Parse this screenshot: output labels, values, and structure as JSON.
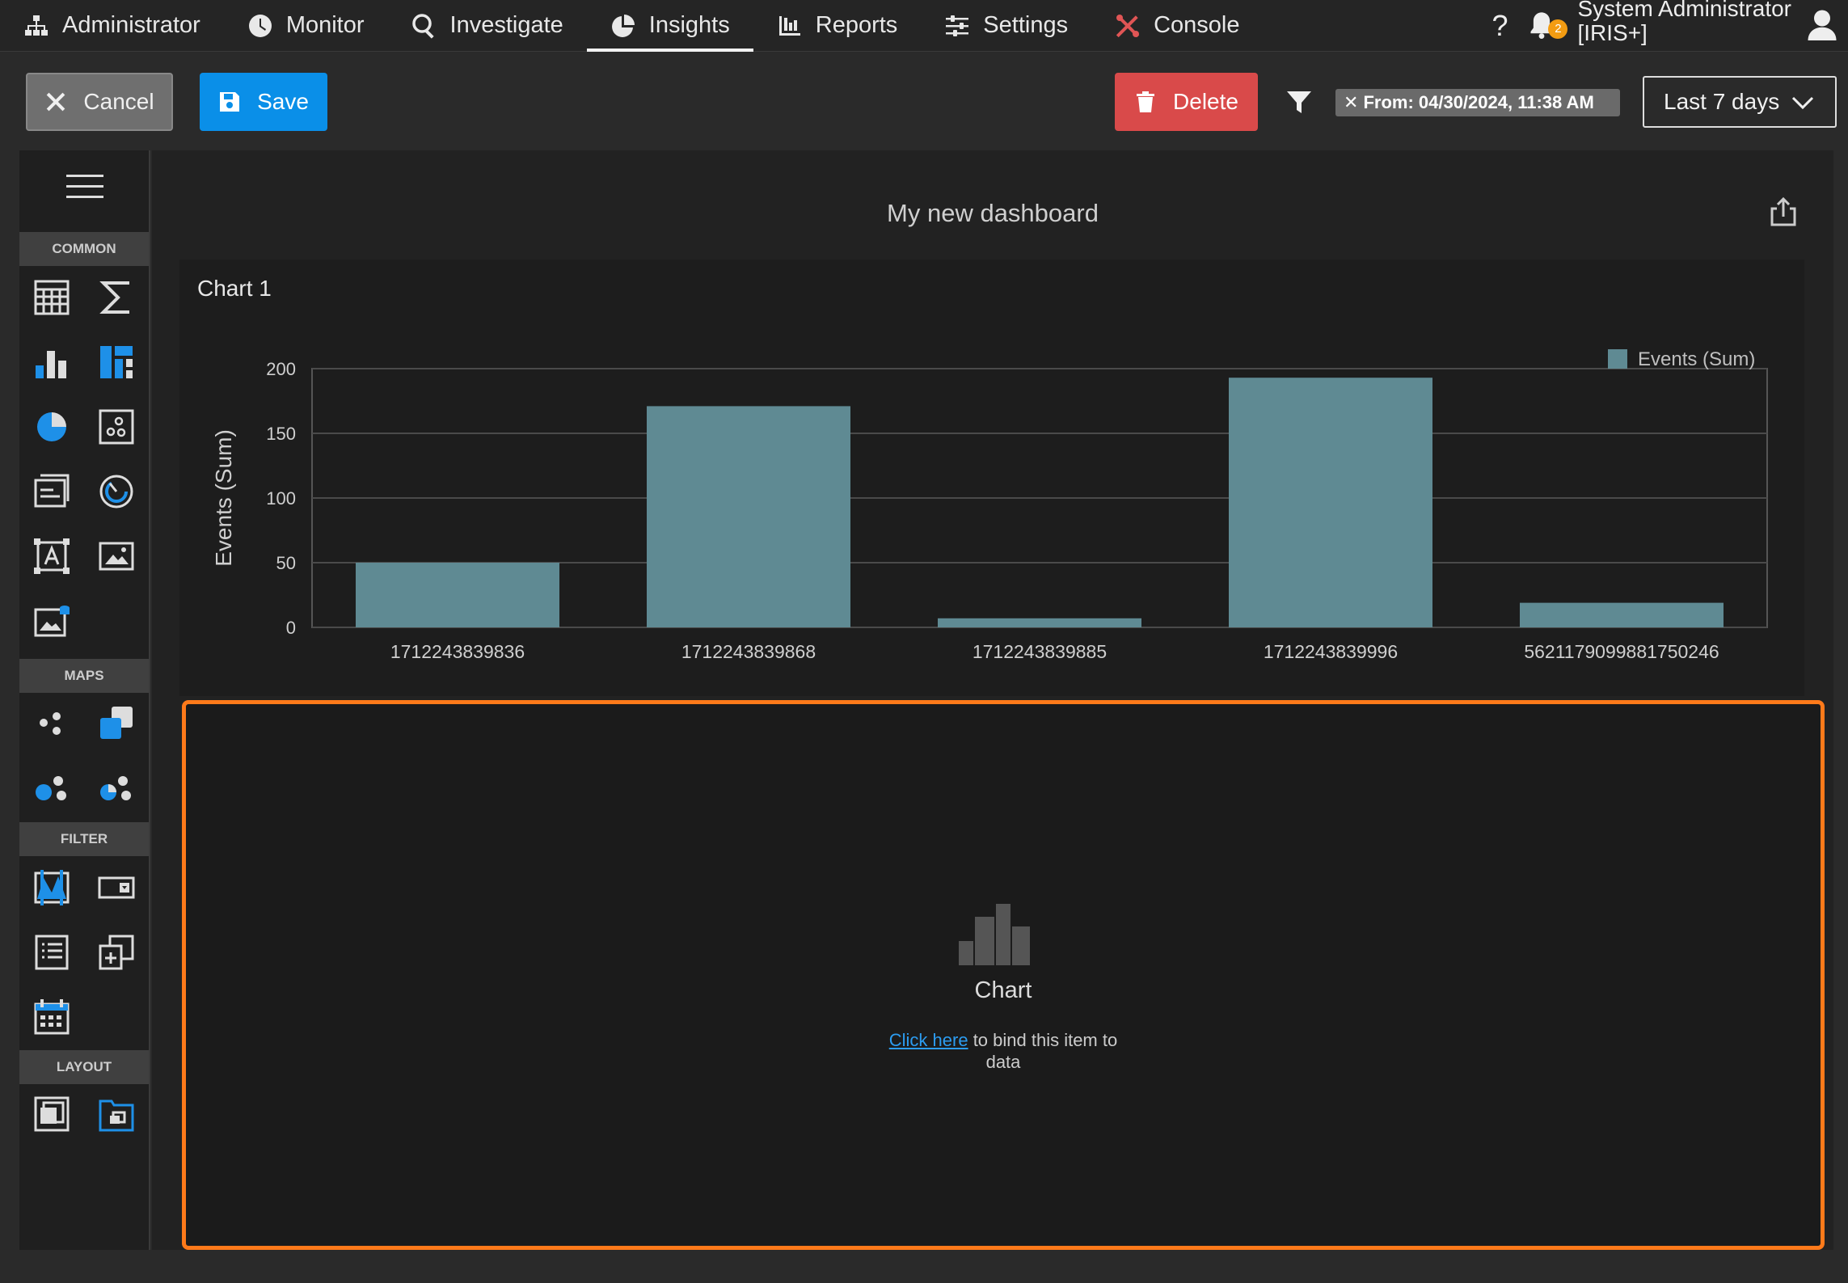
{
  "nav": {
    "items": [
      {
        "label": "Administrator",
        "icon": "sitemap-icon"
      },
      {
        "label": "Monitor",
        "icon": "clock-icon"
      },
      {
        "label": "Investigate",
        "icon": "search-icon"
      },
      {
        "label": "Insights",
        "icon": "pie-chart-icon"
      },
      {
        "label": "Reports",
        "icon": "bar-chart-icon"
      },
      {
        "label": "Settings",
        "icon": "sliders-icon"
      },
      {
        "label": "Console",
        "icon": "tools-icon"
      }
    ],
    "active": "Insights",
    "help": "?",
    "notifications_count": "2",
    "user_line1": "System Administrator",
    "user_line2": "[IRIS+]"
  },
  "toolbar": {
    "cancel_label": "Cancel",
    "save_label": "Save",
    "delete_label": "Delete",
    "from_chip": "From: 04/30/2024, 11:38 AM",
    "range_value": "Last 7 days"
  },
  "sidebar": {
    "sections": {
      "common": "COMMON",
      "maps": "MAPS",
      "filter": "FILTER",
      "layout": "LAYOUT"
    }
  },
  "dashboard": {
    "title": "My new dashboard",
    "chart_card_title": "Chart 1",
    "empty": {
      "title": "Chart",
      "link": "Click here",
      "text": "to bind this item to data"
    }
  },
  "colors": {
    "bar": "#5f8a93",
    "accent": "#0a8fe8",
    "danger": "#d94a4a",
    "highlight": "#ff7a1a"
  },
  "chart_data": {
    "type": "bar",
    "categories": [
      "1712243839836",
      "1712243839868",
      "1712243839885",
      "1712243839996",
      "5621179099881750246"
    ],
    "series": [
      {
        "name": "Events (Sum)",
        "values": [
          50,
          171,
          7,
          193,
          19
        ]
      }
    ],
    "ylabel": "Events (Sum)",
    "xlabel": "",
    "ylim": [
      0,
      200
    ],
    "yticks": [
      0,
      50,
      100,
      150,
      200
    ],
    "grid": true,
    "legend": "top-right"
  }
}
